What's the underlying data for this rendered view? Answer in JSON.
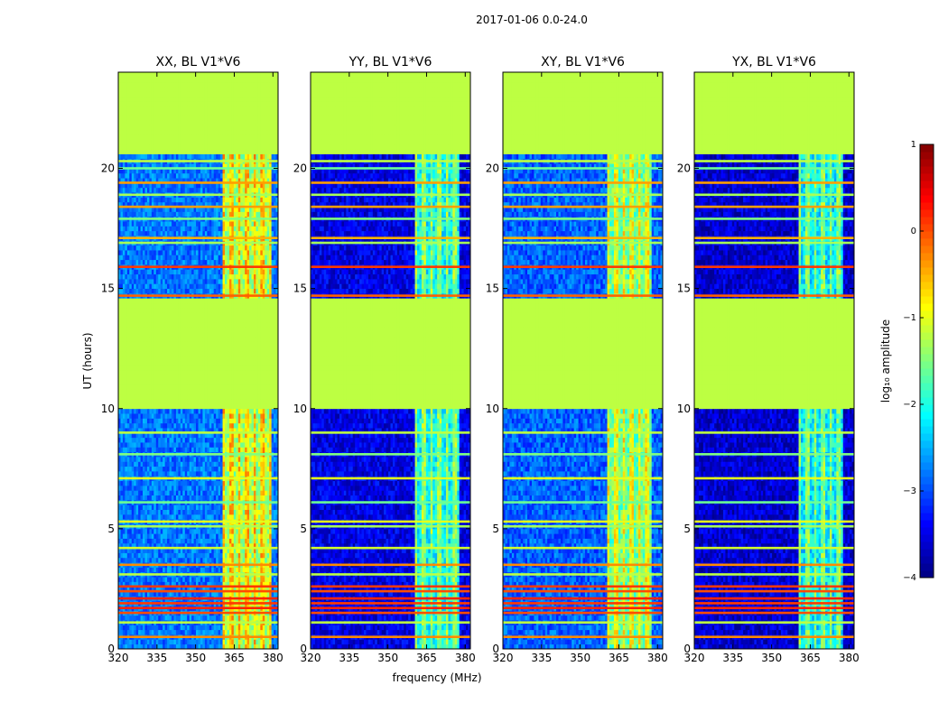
{
  "chart_data": {
    "type": "heatmap",
    "suptitle": "2017-01-06 0.0-24.0",
    "xlabel": "frequency (MHz)",
    "ylabel": "UT (hours)",
    "xlim": [
      320,
      382
    ],
    "ylim": [
      0,
      24
    ],
    "xticks": [
      320,
      335,
      350,
      365,
      380
    ],
    "yticks": [
      0,
      5,
      10,
      15,
      20
    ],
    "panels": [
      {
        "title": "XX, BL V1*V6",
        "baseline": -2.8,
        "band": {
          "start": 360.5,
          "end": 379.5,
          "level": -0.6
        }
      },
      {
        "title": "YY, BL V1*V6",
        "baseline": -3.5,
        "band": {
          "start": 360.5,
          "end": 378.0,
          "level": -1.4
        }
      },
      {
        "title": "XY, BL V1*V6",
        "baseline": -2.9,
        "band": {
          "start": 360.5,
          "end": 378.0,
          "level": -0.9
        }
      },
      {
        "title": "YX, BL V1*V6",
        "baseline": -3.6,
        "band": {
          "start": 360.5,
          "end": 378.0,
          "level": -1.5
        }
      }
    ],
    "gap_blocks_hours": [
      [
        10.0,
        14.6
      ],
      [
        20.6,
        24.0
      ]
    ],
    "gap_level": -1.2,
    "rfi_rows_hours": [
      {
        "t": 0.5,
        "level": -0.3
      },
      {
        "t": 1.1,
        "level": -1.2
      },
      {
        "t": 1.5,
        "level": 0.0
      },
      {
        "t": 1.7,
        "level": 0.2
      },
      {
        "t": 1.9,
        "level": 0.1
      },
      {
        "t": 2.1,
        "level": 0.2
      },
      {
        "t": 2.4,
        "level": 0.0
      },
      {
        "t": 2.6,
        "level": 0.1
      },
      {
        "t": 3.1,
        "level": -1.2
      },
      {
        "t": 3.5,
        "level": -0.3
      },
      {
        "t": 4.2,
        "level": -1.1
      },
      {
        "t": 5.1,
        "level": -1.3
      },
      {
        "t": 5.3,
        "level": -1.0
      },
      {
        "t": 6.1,
        "level": -1.6
      },
      {
        "t": 7.1,
        "level": -1.0
      },
      {
        "t": 8.1,
        "level": -1.5
      },
      {
        "t": 9.0,
        "level": -1.2
      },
      {
        "t": 14.7,
        "level": -0.1
      },
      {
        "t": 15.9,
        "level": 0.1
      },
      {
        "t": 16.9,
        "level": -1.3
      },
      {
        "t": 17.1,
        "level": -0.5
      },
      {
        "t": 17.9,
        "level": -1.5
      },
      {
        "t": 18.4,
        "level": -0.4
      },
      {
        "t": 18.9,
        "level": -1.3
      },
      {
        "t": 19.4,
        "level": -0.4
      },
      {
        "t": 20.0,
        "level": -1.6
      },
      {
        "t": 20.3,
        "level": -1.2
      }
    ],
    "colorbar": {
      "label": "log₁₀ amplitude",
      "range": [
        -4,
        1
      ],
      "ticks": [
        "1",
        "0",
        "−1",
        "−2",
        "−3",
        "−4"
      ],
      "colormap": "jet"
    }
  }
}
